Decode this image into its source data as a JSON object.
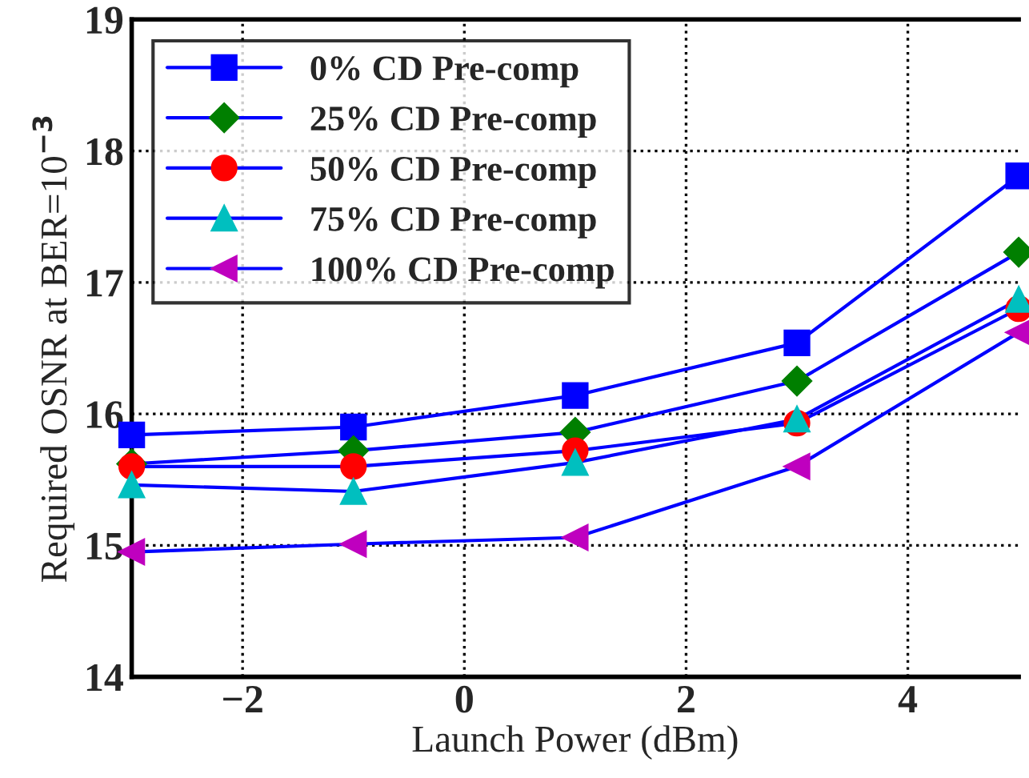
{
  "chart_data": {
    "type": "line",
    "xlabel": "Launch Power (dBm)",
    "ylabel": "Required OSNR at BER=10$^{−3}$",
    "x": [
      -3,
      -1,
      1,
      3,
      5
    ],
    "series": [
      {
        "name": "0% CD Pre-comp",
        "color": "#0000ff",
        "marker": "square",
        "colors": [
          "#0000ff",
          "#0000ff",
          "#0000ff",
          "#0000ff",
          "#0000ff"
        ],
        "values": [
          15.84,
          15.9,
          16.14,
          16.54,
          17.81
        ]
      },
      {
        "name": "25% CD Pre-comp",
        "color": "#0000ff",
        "marker": "diamond",
        "colors": [
          "#007f00",
          "#007f00",
          "#007f00",
          "#007f00",
          "#007f00"
        ],
        "values": [
          15.62,
          15.72,
          15.86,
          16.25,
          17.23
        ]
      },
      {
        "name": "50% CD Pre-comp",
        "color": "#0000ff",
        "marker": "circle",
        "colors": [
          "#ff0000",
          "#ff0000",
          "#ff0000",
          "#ff0000",
          "#ff0000"
        ],
        "values": [
          15.6,
          15.6,
          15.72,
          15.93,
          16.8
        ]
      },
      {
        "name": "75% CD Pre-comp",
        "color": "#0000ff",
        "marker": "triangle",
        "colors": [
          "#00bfbf",
          "#00bfbf",
          "#00bfbf",
          "#00bfbf",
          "#00bfbf"
        ],
        "values": [
          15.46,
          15.41,
          15.63,
          15.96,
          16.87
        ]
      },
      {
        "name": "100% CD Pre-comp",
        "color": "#0000ff",
        "marker": "triangle-left",
        "colors": [
          "#bf00bf",
          "#bf00bf",
          "#bf00bf",
          "#bf00bf",
          "#bf00bf"
        ],
        "values": [
          14.95,
          15.01,
          15.06,
          15.6,
          16.62
        ]
      }
    ],
    "xlim": [
      -3,
      5
    ],
    "ylim": [
      14,
      19
    ],
    "xticks": [
      -2,
      0,
      2,
      4
    ],
    "yticks": [
      14,
      15,
      16,
      17,
      18,
      19
    ],
    "grid": true,
    "legend": "top left",
    "line_style": "solid"
  }
}
